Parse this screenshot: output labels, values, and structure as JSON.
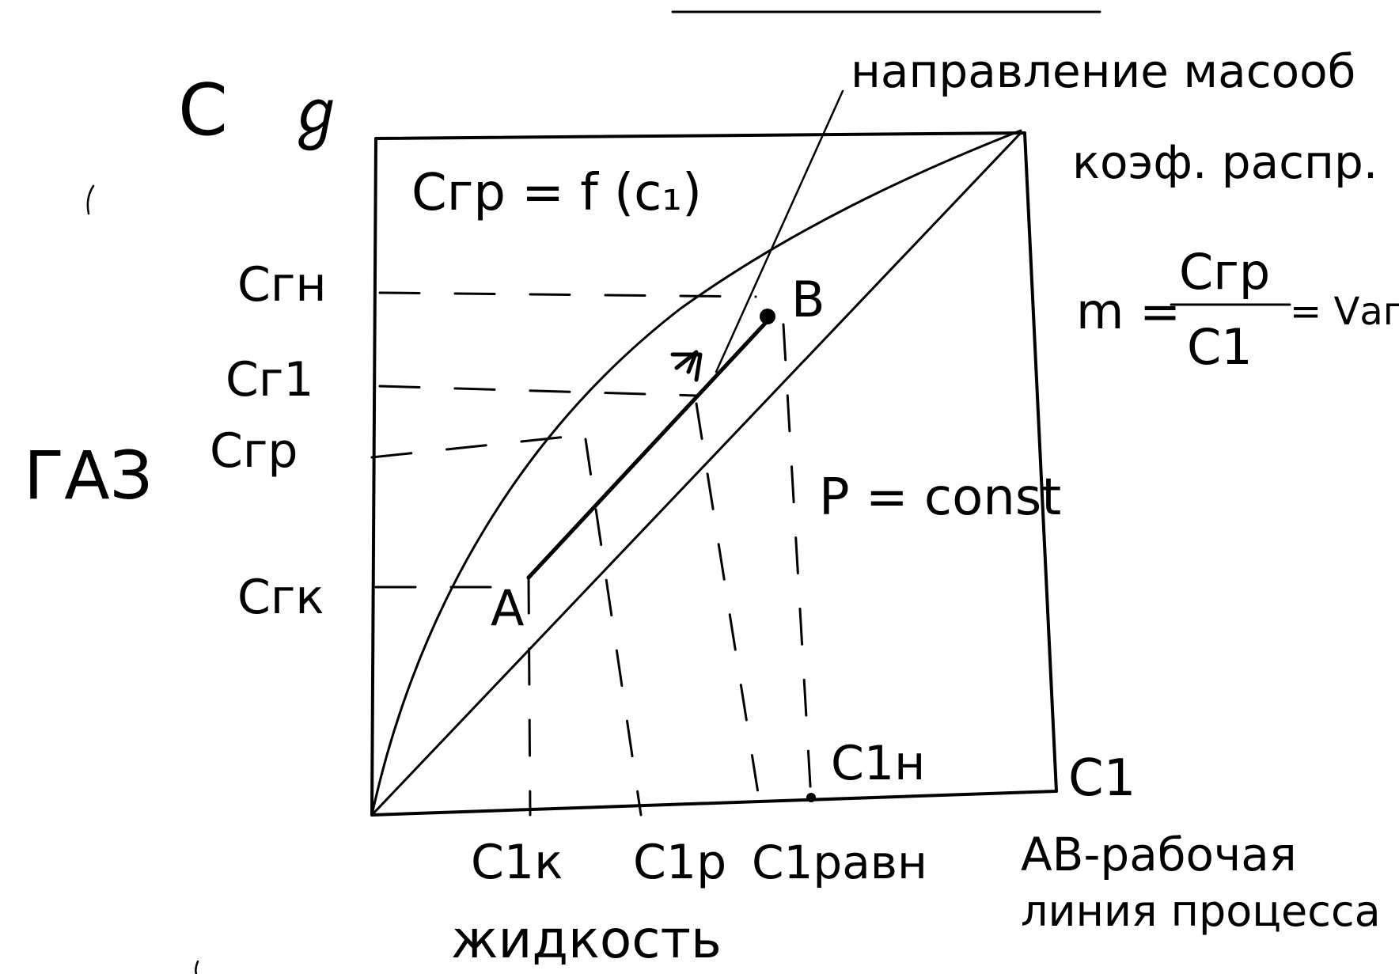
{
  "labels": {
    "axis_y_top": "C",
    "axis_y_top_mark": "ℊ",
    "title_function": "Сгр = f (c₁)",
    "c_gn": "Сгн",
    "c_g1": "Сг1",
    "c_grav": "Сгр",
    "c_gk": "Сгк",
    "gas": "ГАЗ",
    "point_a": "A",
    "point_b": "B",
    "direction": "направление масооб",
    "coef": "коэф. распр.",
    "m_eq_left": "m =",
    "m_num": "Сгр",
    "m_den": "С1",
    "m_eq_right": "= Vаг",
    "p_const": "P = const",
    "c_1n": "С1н",
    "axis_x_right": "С1",
    "c_1k": "С1к",
    "c_1p": "С1р",
    "c_1ravn": "С1равн",
    "liquid": "жидкость",
    "ab_line_1": "AB-рабочая",
    "ab_line_2": "линия процесса"
  },
  "colors": {
    "ink": "#000000",
    "paper": "#ffffff"
  }
}
